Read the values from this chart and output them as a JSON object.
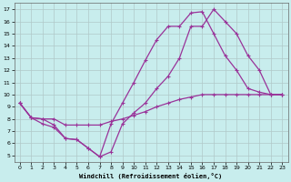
{
  "xlabel": "Windchill (Refroidissement éolien,°C)",
  "background_color": "#c8eded",
  "grid_color": "#b0c8c8",
  "line_color": "#993399",
  "xlim": [
    -0.5,
    23.5
  ],
  "ylim": [
    4.5,
    17.5
  ],
  "xticks": [
    0,
    1,
    2,
    3,
    4,
    5,
    6,
    7,
    8,
    9,
    10,
    11,
    12,
    13,
    14,
    15,
    16,
    17,
    18,
    19,
    20,
    21,
    22,
    23
  ],
  "yticks": [
    5,
    6,
    7,
    8,
    9,
    10,
    11,
    12,
    13,
    14,
    15,
    16,
    17
  ],
  "line1_x": [
    0,
    1,
    2,
    3,
    4,
    5,
    6,
    7,
    8,
    9,
    10,
    11,
    12,
    13,
    14,
    15,
    16,
    17,
    18,
    19,
    20,
    21,
    22,
    23
  ],
  "line1_y": [
    9.3,
    8.1,
    7.6,
    7.3,
    6.4,
    6.3,
    5.6,
    4.9,
    7.6,
    9.3,
    11.0,
    12.8,
    14.5,
    15.6,
    15.6,
    16.7,
    16.8,
    15.0,
    13.2,
    12.0,
    10.5,
    10.2,
    10.0,
    10.0
  ],
  "line2_x": [
    0,
    1,
    2,
    3,
    4,
    5,
    6,
    7,
    8,
    9,
    10,
    11,
    12,
    13,
    14,
    15,
    16,
    17,
    18,
    19,
    20,
    21,
    22,
    23
  ],
  "line2_y": [
    9.3,
    8.1,
    8.0,
    7.5,
    6.4,
    6.3,
    5.6,
    4.9,
    5.3,
    7.6,
    8.5,
    9.3,
    10.5,
    11.5,
    13.0,
    15.6,
    15.6,
    17.0,
    16.0,
    15.0,
    13.2,
    12.0,
    10.0,
    10.0
  ],
  "line3_x": [
    0,
    1,
    2,
    3,
    4,
    5,
    6,
    7,
    8,
    9,
    10,
    11,
    12,
    13,
    14,
    15,
    16,
    17,
    18,
    19,
    20,
    21,
    22,
    23
  ],
  "line3_y": [
    9.3,
    8.1,
    8.0,
    8.0,
    7.5,
    7.5,
    7.5,
    7.5,
    7.8,
    8.0,
    8.3,
    8.6,
    9.0,
    9.3,
    9.6,
    9.8,
    10.0,
    10.0,
    10.0,
    10.0,
    10.0,
    10.0,
    10.0,
    10.0
  ]
}
